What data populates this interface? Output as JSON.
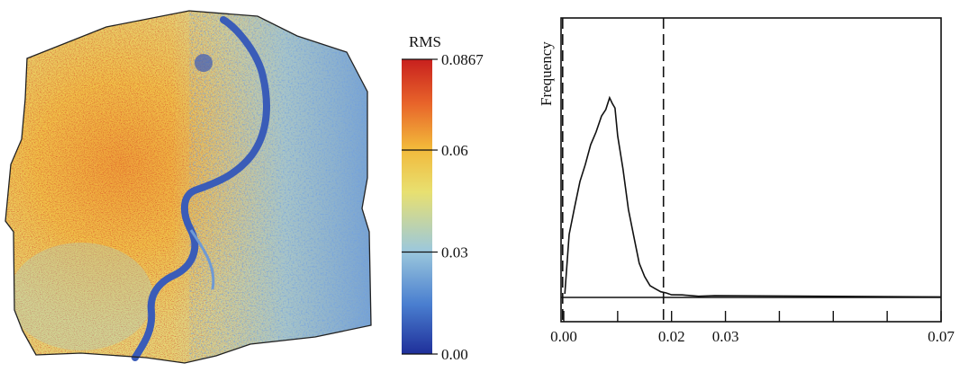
{
  "colorbar": {
    "title": "RMS",
    "tick_labels": [
      "0.0867",
      "0.06",
      "0.03",
      "0.00"
    ],
    "tick_values": [
      0.0867,
      0.06,
      0.03,
      0.0
    ],
    "range": [
      0.0,
      0.0867
    ],
    "colors": [
      "#1f2f9a",
      "#4a7fd0",
      "#9cc8dc",
      "#e8e070",
      "#f2b83a",
      "#e8642a",
      "#c8201e"
    ]
  },
  "chart_data": [
    {
      "type": "heatmap",
      "description_of_content": "",
      "colorbar_title": "RMS",
      "value_range": [
        0.0,
        0.0867
      ]
    },
    {
      "type": "area",
      "title": "",
      "xlabel": "",
      "ylabel": "Frequency",
      "x_tick_labels": [
        "0.00",
        "0.02",
        "0.03",
        "0.07"
      ],
      "x_tick_values": [
        0.0,
        0.02,
        0.03,
        0.07
      ],
      "xlim": [
        -0.0005,
        0.07
      ],
      "dashed_lines_x": [
        -0.0002,
        0.0185
      ],
      "series": [
        {
          "x": [
            0.0002,
            0.001,
            0.002,
            0.003,
            0.004,
            0.005,
            0.006,
            0.007,
            0.0078,
            0.0085,
            0.009,
            0.0095,
            0.01,
            0.011,
            0.012,
            0.013,
            0.014,
            0.015,
            0.016,
            0.017,
            0.018,
            0.019,
            0.02,
            0.022,
            0.025,
            0.028,
            0.07
          ],
          "y": [
            0.02,
            0.3,
            0.45,
            0.56,
            0.66,
            0.74,
            0.82,
            0.88,
            0.93,
            0.97,
            0.96,
            0.92,
            0.8,
            0.62,
            0.44,
            0.29,
            0.17,
            0.1,
            0.06,
            0.04,
            0.03,
            0.02,
            0.015,
            0.01,
            0.008,
            0.006,
            0.005
          ]
        }
      ]
    }
  ]
}
